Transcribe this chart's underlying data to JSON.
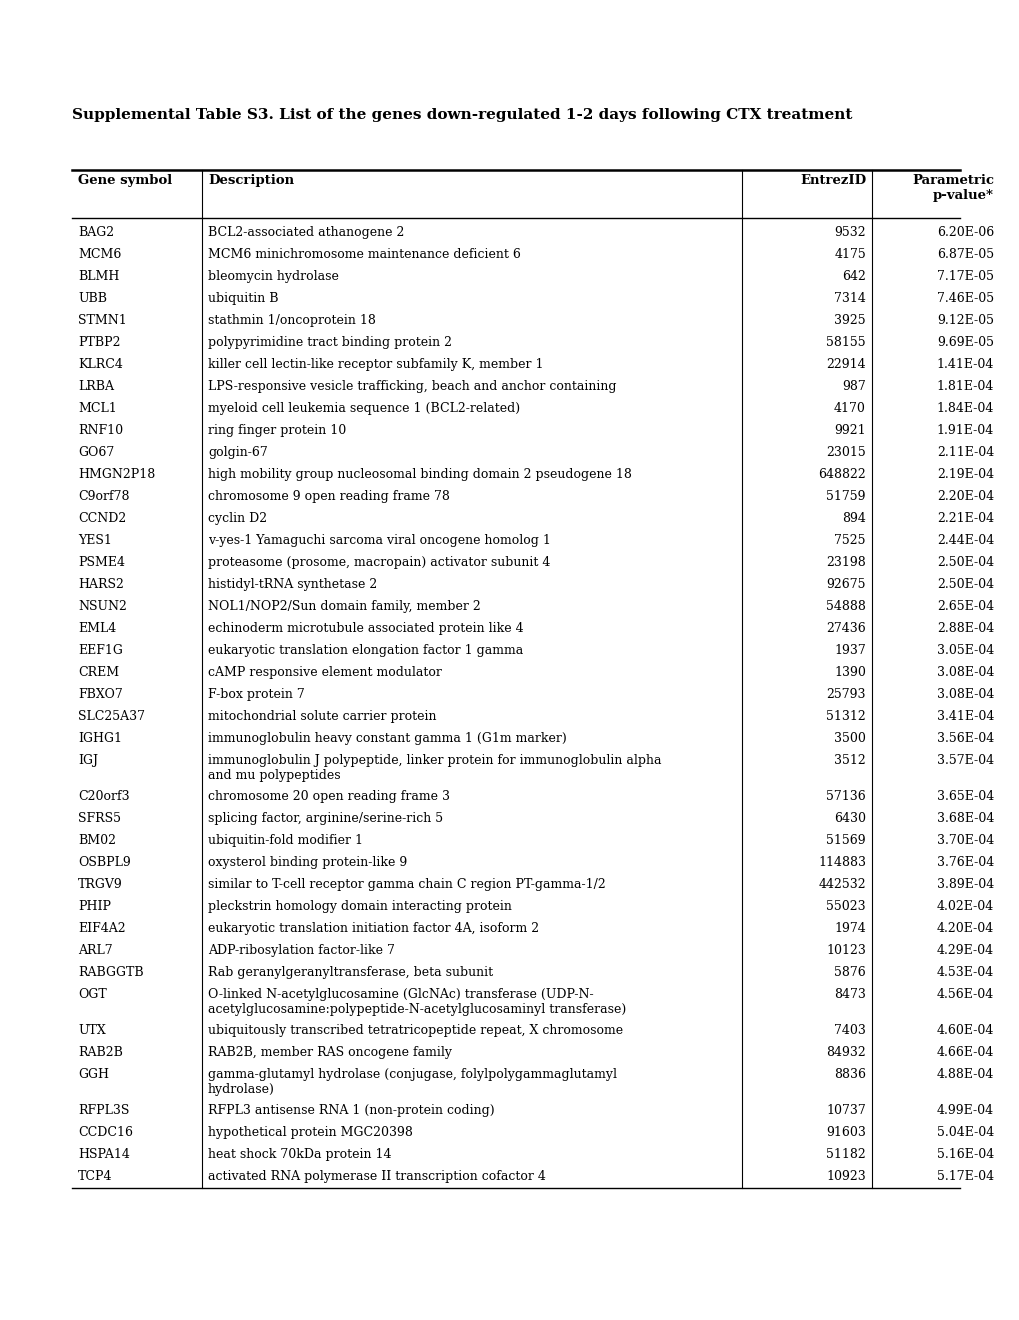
{
  "title": "Supplemental Table S3. List of the genes down-regulated 1-2 days following CTX treatment",
  "columns": [
    "Gene symbol",
    "Description",
    "EntrezID",
    "Parametric\np-value*"
  ],
  "rows": [
    [
      "BAG2",
      "BCL2-associated athanogene 2",
      "9532",
      "6.20E-06"
    ],
    [
      "MCM6",
      "MCM6 minichromosome maintenance deficient 6",
      "4175",
      "6.87E-05"
    ],
    [
      "BLMH",
      "bleomycin hydrolase",
      "642",
      "7.17E-05"
    ],
    [
      "UBB",
      "ubiquitin B",
      "7314",
      "7.46E-05"
    ],
    [
      "STMN1",
      "stathmin 1/oncoprotein 18",
      "3925",
      "9.12E-05"
    ],
    [
      "PTBP2",
      "polypyrimidine tract binding protein 2",
      "58155",
      "9.69E-05"
    ],
    [
      "KLRC4",
      "killer cell lectin-like receptor subfamily K, member 1",
      "22914",
      "1.41E-04"
    ],
    [
      "LRBA",
      "LPS-responsive vesicle trafficking, beach and anchor containing",
      "987",
      "1.81E-04"
    ],
    [
      "MCL1",
      "myeloid cell leukemia sequence 1 (BCL2-related)",
      "4170",
      "1.84E-04"
    ],
    [
      "RNF10",
      "ring finger protein 10",
      "9921",
      "1.91E-04"
    ],
    [
      "GO67",
      "golgin-67",
      "23015",
      "2.11E-04"
    ],
    [
      "HMGN2P18",
      "high mobility group nucleosomal binding domain 2 pseudogene 18",
      "648822",
      "2.19E-04"
    ],
    [
      "C9orf78",
      "chromosome 9 open reading frame 78",
      "51759",
      "2.20E-04"
    ],
    [
      "CCND2",
      "cyclin D2",
      "894",
      "2.21E-04"
    ],
    [
      "YES1",
      "v-yes-1 Yamaguchi sarcoma viral oncogene homolog 1",
      "7525",
      "2.44E-04"
    ],
    [
      "PSME4",
      "proteasome (prosome, macropain) activator subunit 4",
      "23198",
      "2.50E-04"
    ],
    [
      "HARS2",
      "histidyl-tRNA synthetase 2",
      "92675",
      "2.50E-04"
    ],
    [
      "NSUN2",
      "NOL1/NOP2/Sun domain family, member 2",
      "54888",
      "2.65E-04"
    ],
    [
      "EML4",
      "echinoderm microtubule associated protein like 4",
      "27436",
      "2.88E-04"
    ],
    [
      "EEF1G",
      "eukaryotic translation elongation factor 1 gamma",
      "1937",
      "3.05E-04"
    ],
    [
      "CREM",
      "cAMP responsive element modulator",
      "1390",
      "3.08E-04"
    ],
    [
      "FBXO7",
      "F-box protein 7",
      "25793",
      "3.08E-04"
    ],
    [
      "SLC25A37",
      "mitochondrial solute carrier protein",
      "51312",
      "3.41E-04"
    ],
    [
      "IGHG1",
      "immunoglobulin heavy constant gamma 1 (G1m marker)",
      "3500",
      "3.56E-04"
    ],
    [
      "IGJ",
      "immunoglobulin J polypeptide, linker protein for immunoglobulin alpha\nand mu polypeptides",
      "3512",
      "3.57E-04"
    ],
    [
      "C20orf3",
      "chromosome 20 open reading frame 3",
      "57136",
      "3.65E-04"
    ],
    [
      "SFRS5",
      "splicing factor, arginine/serine-rich 5",
      "6430",
      "3.68E-04"
    ],
    [
      "BM02",
      "ubiquitin-fold modifier 1",
      "51569",
      "3.70E-04"
    ],
    [
      "OSBPL9",
      "oxysterol binding protein-like 9",
      "114883",
      "3.76E-04"
    ],
    [
      "TRGV9",
      "similar to T-cell receptor gamma chain C region PT-gamma-1/2",
      "442532",
      "3.89E-04"
    ],
    [
      "PHIP",
      "pleckstrin homology domain interacting protein",
      "55023",
      "4.02E-04"
    ],
    [
      "EIF4A2",
      "eukaryotic translation initiation factor 4A, isoform 2",
      "1974",
      "4.20E-04"
    ],
    [
      "ARL7",
      "ADP-ribosylation factor-like 7",
      "10123",
      "4.29E-04"
    ],
    [
      "RABGGTB",
      "Rab geranylgeranyltransferase, beta subunit",
      "5876",
      "4.53E-04"
    ],
    [
      "OGT",
      "O-linked N-acetylglucosamine (GlcNAc) transferase (UDP-N-\nacetylglucosamine:polypeptide-N-acetylglucosaminyl transferase)",
      "8473",
      "4.56E-04"
    ],
    [
      "UTX",
      "ubiquitously transcribed tetratricopeptide repeat, X chromosome",
      "7403",
      "4.60E-04"
    ],
    [
      "RAB2B",
      "RAB2B, member RAS oncogene family",
      "84932",
      "4.66E-04"
    ],
    [
      "GGH",
      "gamma-glutamyl hydrolase (conjugase, folylpolygammaglutamyl\nhydrolase)",
      "8836",
      "4.88E-04"
    ],
    [
      "RFPL3S",
      "RFPL3 antisense RNA 1 (non-protein coding)",
      "10737",
      "4.99E-04"
    ],
    [
      "CCDC16",
      "hypothetical protein MGC20398",
      "91603",
      "5.04E-04"
    ],
    [
      "HSPA14",
      "heat shock 70kDa protein 14",
      "51182",
      "5.16E-04"
    ],
    [
      "TCP4",
      "activated RNA polymerase II transcription cofactor 4",
      "10923",
      "5.17E-04"
    ]
  ],
  "background_color": "#ffffff",
  "font_size": 9.0,
  "title_font_size": 11.0,
  "header_font_size": 9.5,
  "figsize": [
    10.2,
    13.2
  ],
  "dpi": 100
}
